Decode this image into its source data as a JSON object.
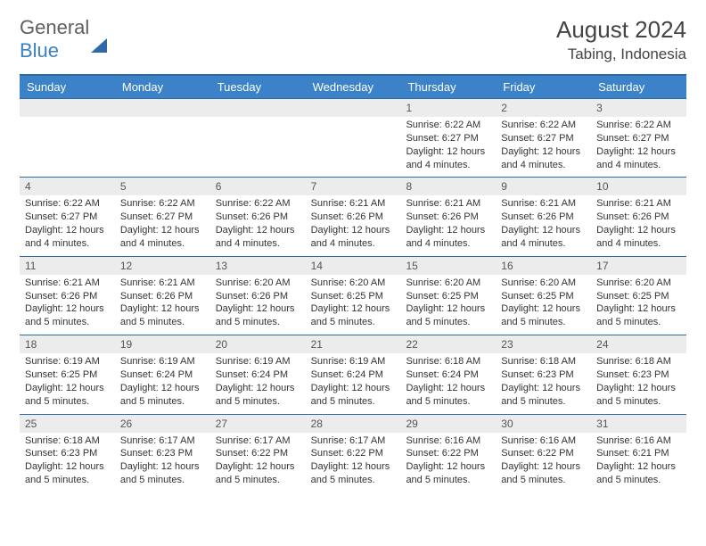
{
  "brand": {
    "word1": "General",
    "word2": "Blue"
  },
  "title": "August 2024",
  "location": "Tabing, Indonesia",
  "colors": {
    "header_bg": "#3b82c9",
    "border": "#2f6aa8",
    "daynum_bg": "#ececec",
    "text": "#333333",
    "logo_gray": "#5f5f5f",
    "logo_blue": "#3b7fc4"
  },
  "days_of_week": [
    "Sunday",
    "Monday",
    "Tuesday",
    "Wednesday",
    "Thursday",
    "Friday",
    "Saturday"
  ],
  "weeks": [
    [
      {
        "n": "",
        "sunrise": "",
        "sunset": "",
        "daylight": ""
      },
      {
        "n": "",
        "sunrise": "",
        "sunset": "",
        "daylight": ""
      },
      {
        "n": "",
        "sunrise": "",
        "sunset": "",
        "daylight": ""
      },
      {
        "n": "",
        "sunrise": "",
        "sunset": "",
        "daylight": ""
      },
      {
        "n": "1",
        "sunrise": "Sunrise: 6:22 AM",
        "sunset": "Sunset: 6:27 PM",
        "daylight": "Daylight: 12 hours and 4 minutes."
      },
      {
        "n": "2",
        "sunrise": "Sunrise: 6:22 AM",
        "sunset": "Sunset: 6:27 PM",
        "daylight": "Daylight: 12 hours and 4 minutes."
      },
      {
        "n": "3",
        "sunrise": "Sunrise: 6:22 AM",
        "sunset": "Sunset: 6:27 PM",
        "daylight": "Daylight: 12 hours and 4 minutes."
      }
    ],
    [
      {
        "n": "4",
        "sunrise": "Sunrise: 6:22 AM",
        "sunset": "Sunset: 6:27 PM",
        "daylight": "Daylight: 12 hours and 4 minutes."
      },
      {
        "n": "5",
        "sunrise": "Sunrise: 6:22 AM",
        "sunset": "Sunset: 6:27 PM",
        "daylight": "Daylight: 12 hours and 4 minutes."
      },
      {
        "n": "6",
        "sunrise": "Sunrise: 6:22 AM",
        "sunset": "Sunset: 6:26 PM",
        "daylight": "Daylight: 12 hours and 4 minutes."
      },
      {
        "n": "7",
        "sunrise": "Sunrise: 6:21 AM",
        "sunset": "Sunset: 6:26 PM",
        "daylight": "Daylight: 12 hours and 4 minutes."
      },
      {
        "n": "8",
        "sunrise": "Sunrise: 6:21 AM",
        "sunset": "Sunset: 6:26 PM",
        "daylight": "Daylight: 12 hours and 4 minutes."
      },
      {
        "n": "9",
        "sunrise": "Sunrise: 6:21 AM",
        "sunset": "Sunset: 6:26 PM",
        "daylight": "Daylight: 12 hours and 4 minutes."
      },
      {
        "n": "10",
        "sunrise": "Sunrise: 6:21 AM",
        "sunset": "Sunset: 6:26 PM",
        "daylight": "Daylight: 12 hours and 4 minutes."
      }
    ],
    [
      {
        "n": "11",
        "sunrise": "Sunrise: 6:21 AM",
        "sunset": "Sunset: 6:26 PM",
        "daylight": "Daylight: 12 hours and 5 minutes."
      },
      {
        "n": "12",
        "sunrise": "Sunrise: 6:21 AM",
        "sunset": "Sunset: 6:26 PM",
        "daylight": "Daylight: 12 hours and 5 minutes."
      },
      {
        "n": "13",
        "sunrise": "Sunrise: 6:20 AM",
        "sunset": "Sunset: 6:26 PM",
        "daylight": "Daylight: 12 hours and 5 minutes."
      },
      {
        "n": "14",
        "sunrise": "Sunrise: 6:20 AM",
        "sunset": "Sunset: 6:25 PM",
        "daylight": "Daylight: 12 hours and 5 minutes."
      },
      {
        "n": "15",
        "sunrise": "Sunrise: 6:20 AM",
        "sunset": "Sunset: 6:25 PM",
        "daylight": "Daylight: 12 hours and 5 minutes."
      },
      {
        "n": "16",
        "sunrise": "Sunrise: 6:20 AM",
        "sunset": "Sunset: 6:25 PM",
        "daylight": "Daylight: 12 hours and 5 minutes."
      },
      {
        "n": "17",
        "sunrise": "Sunrise: 6:20 AM",
        "sunset": "Sunset: 6:25 PM",
        "daylight": "Daylight: 12 hours and 5 minutes."
      }
    ],
    [
      {
        "n": "18",
        "sunrise": "Sunrise: 6:19 AM",
        "sunset": "Sunset: 6:25 PM",
        "daylight": "Daylight: 12 hours and 5 minutes."
      },
      {
        "n": "19",
        "sunrise": "Sunrise: 6:19 AM",
        "sunset": "Sunset: 6:24 PM",
        "daylight": "Daylight: 12 hours and 5 minutes."
      },
      {
        "n": "20",
        "sunrise": "Sunrise: 6:19 AM",
        "sunset": "Sunset: 6:24 PM",
        "daylight": "Daylight: 12 hours and 5 minutes."
      },
      {
        "n": "21",
        "sunrise": "Sunrise: 6:19 AM",
        "sunset": "Sunset: 6:24 PM",
        "daylight": "Daylight: 12 hours and 5 minutes."
      },
      {
        "n": "22",
        "sunrise": "Sunrise: 6:18 AM",
        "sunset": "Sunset: 6:24 PM",
        "daylight": "Daylight: 12 hours and 5 minutes."
      },
      {
        "n": "23",
        "sunrise": "Sunrise: 6:18 AM",
        "sunset": "Sunset: 6:23 PM",
        "daylight": "Daylight: 12 hours and 5 minutes."
      },
      {
        "n": "24",
        "sunrise": "Sunrise: 6:18 AM",
        "sunset": "Sunset: 6:23 PM",
        "daylight": "Daylight: 12 hours and 5 minutes."
      }
    ],
    [
      {
        "n": "25",
        "sunrise": "Sunrise: 6:18 AM",
        "sunset": "Sunset: 6:23 PM",
        "daylight": "Daylight: 12 hours and 5 minutes."
      },
      {
        "n": "26",
        "sunrise": "Sunrise: 6:17 AM",
        "sunset": "Sunset: 6:23 PM",
        "daylight": "Daylight: 12 hours and 5 minutes."
      },
      {
        "n": "27",
        "sunrise": "Sunrise: 6:17 AM",
        "sunset": "Sunset: 6:22 PM",
        "daylight": "Daylight: 12 hours and 5 minutes."
      },
      {
        "n": "28",
        "sunrise": "Sunrise: 6:17 AM",
        "sunset": "Sunset: 6:22 PM",
        "daylight": "Daylight: 12 hours and 5 minutes."
      },
      {
        "n": "29",
        "sunrise": "Sunrise: 6:16 AM",
        "sunset": "Sunset: 6:22 PM",
        "daylight": "Daylight: 12 hours and 5 minutes."
      },
      {
        "n": "30",
        "sunrise": "Sunrise: 6:16 AM",
        "sunset": "Sunset: 6:22 PM",
        "daylight": "Daylight: 12 hours and 5 minutes."
      },
      {
        "n": "31",
        "sunrise": "Sunrise: 6:16 AM",
        "sunset": "Sunset: 6:21 PM",
        "daylight": "Daylight: 12 hours and 5 minutes."
      }
    ]
  ]
}
